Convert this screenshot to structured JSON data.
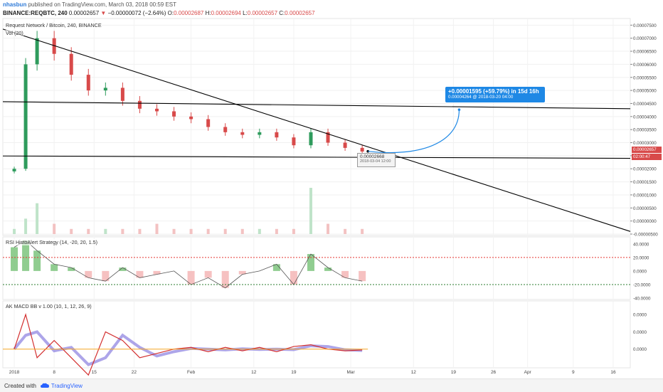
{
  "header": {
    "username": "nhasbun",
    "published_text": "published on TradingView.com, March 03, 2018 00:59 EST",
    "symbol_line": "BINANCE:REQBTC, 240",
    "price": "0.00002657",
    "change_arrow": "▼",
    "change": "−0.00000072 (−2.64%)",
    "ohlc": {
      "o_label": "O:",
      "o": "0.00002687",
      "h_label": "H:",
      "h": "0.00002694",
      "l_label": "L:",
      "l": "0.00002657",
      "c_label": "C:",
      "c": "0.00002657"
    }
  },
  "main_panel": {
    "title": "Request Network / Bitcoin, 240, BINANCE",
    "volume_label": "Vol (20)",
    "current_price_tag": "0.00002657",
    "countdown_tag": "02:00:47",
    "yticks": [
      "0.00007500",
      "0.00007000",
      "0.00006500",
      "0.00006000",
      "0.00005500",
      "0.00005000",
      "0.00004500",
      "0.00004000",
      "0.00003500",
      "0.00003000",
      "0.00002500",
      "0.00002000",
      "0.00001500",
      "0.00001000",
      "0.00000500",
      "0.00000000",
      "-0.00000500"
    ]
  },
  "projection": {
    "line1": "+0.00001595 (+59.79%) in 15d 16h",
    "line2": "0.00004264 @ 2018-03-20 04:00"
  },
  "tooltip": {
    "value": "0.00002668",
    "date": "2018-03-04 12:00"
  },
  "rsi_panel": {
    "title": "RSI HistoAlert Strategy (14, -20, 20, 1.5)",
    "yticks": [
      "40.0000",
      "20.0000",
      "0.0000",
      "-20.0000",
      "-40.0000"
    ]
  },
  "macd_panel": {
    "title": "AK MACD BB v 1.00 (10, 1, 12, 26, 9)",
    "yticks": [
      "0.0000",
      "0.0000",
      "0.0000"
    ]
  },
  "xaxis": {
    "ticks": [
      "2018",
      "8",
      "15",
      "22",
      "Feb",
      "12",
      "19",
      "Mar",
      "12",
      "19",
      "26",
      "Apr",
      "9",
      "16"
    ]
  },
  "footer": {
    "created_with": "Created with",
    "brand": "TradingView"
  },
  "colors": {
    "accent": "#1e88e5",
    "down": "#d84a4a",
    "up": "#2e9b5c",
    "rsi_green": "#7cc47c",
    "rsi_red": "#f4b6b6",
    "macd_band": "#8a7fe0",
    "trendline": "#000000"
  },
  "chart_data": [
    {
      "type": "candlestick",
      "title": "Request Network / Bitcoin, 240, BINANCE",
      "x": [
        "2018-01-01",
        "2018-01-03",
        "2018-01-05",
        "2018-01-08",
        "2018-01-11",
        "2018-01-14",
        "2018-01-17",
        "2018-01-20",
        "2018-01-23",
        "2018-01-26",
        "2018-01-29",
        "2018-02-01",
        "2018-02-04",
        "2018-02-07",
        "2018-02-10",
        "2018-02-13",
        "2018-02-16",
        "2018-02-19",
        "2018-02-22",
        "2018-02-25",
        "2018-02-28",
        "2018-03-03"
      ],
      "series": [
        {
          "values": [
            2e-05,
            6e-05,
            7e-05,
            6.4e-05,
            5.6e-05,
            5e-05,
            5.1e-05,
            4.6e-05,
            4.3e-05,
            4.2e-05,
            4e-05,
            3.9e-05,
            3.6e-05,
            3.4e-05,
            3.3e-05,
            3.4e-05,
            3.2e-05,
            2.9e-05,
            3.4e-05,
            3e-05,
            2.8e-05,
            2.66e-05
          ]
        }
      ],
      "ylim": [
        -5e-06,
        7.7e-05
      ],
      "trendlines": [
        {
          "from": [
            "2017-12-30",
            7.35e-05
          ],
          "to": [
            "2018-04-19",
            -4e-06
          ]
        },
        {
          "from": [
            "2017-12-30",
            4.57e-05
          ],
          "to": [
            "2018-04-19",
            4.3e-05
          ]
        },
        {
          "from": [
            "2017-12-30",
            2.49e-05
          ],
          "to": [
            "2018-04-19",
            2.4e-05
          ]
        }
      ],
      "volume": {
        "label": "Vol (20)",
        "values": [
          1e-06,
          3e-06,
          6e-06,
          2e-06,
          1e-06,
          1e-06,
          1e-06,
          1e-06,
          1e-06,
          2e-06,
          1e-06,
          1e-06,
          1e-06,
          1e-06,
          1e-06,
          1e-06,
          1e-06,
          1e-06,
          9e-06,
          2e-06,
          1e-06,
          1e-06
        ]
      }
    },
    {
      "type": "area",
      "title": "RSI HistoAlert Strategy (14, -20, 20, 1.5)",
      "x": [
        "2018-01-01",
        "2018-01-03",
        "2018-01-05",
        "2018-01-08",
        "2018-01-11",
        "2018-01-14",
        "2018-01-17",
        "2018-01-20",
        "2018-01-23",
        "2018-01-26",
        "2018-01-29",
        "2018-02-01",
        "2018-02-04",
        "2018-02-07",
        "2018-02-10",
        "2018-02-13",
        "2018-02-16",
        "2018-02-19",
        "2018-02-22",
        "2018-02-25",
        "2018-02-28",
        "2018-03-03"
      ],
      "series": [
        {
          "values": [
            35,
            45,
            30,
            10,
            5,
            -10,
            -15,
            5,
            -10,
            -5,
            0,
            -20,
            -10,
            -25,
            -5,
            0,
            10,
            -20,
            25,
            5,
            -10,
            -15
          ]
        }
      ],
      "thresholds": [
        20,
        -20
      ],
      "ylim": [
        -40,
        45
      ]
    },
    {
      "type": "line",
      "title": "AK MACD BB v 1.00 (10, 1, 12, 26, 9)",
      "x": [
        "2018-01-01",
        "2018-01-03",
        "2018-01-05",
        "2018-01-08",
        "2018-01-11",
        "2018-01-14",
        "2018-01-17",
        "2018-01-20",
        "2018-01-23",
        "2018-01-26",
        "2018-01-29",
        "2018-02-01",
        "2018-02-04",
        "2018-02-07",
        "2018-02-10",
        "2018-02-13",
        "2018-02-16",
        "2018-02-19",
        "2018-02-22",
        "2018-02-25",
        "2018-02-28",
        "2018-03-03"
      ],
      "series": [
        {
          "values": [
            0,
            4e-06,
            -1e-06,
            1e-06,
            -1e-06,
            -3e-06,
            2e-06,
            1e-06,
            -1e-06,
            -5e-07,
            0,
            2e-07,
            -3e-07,
            2e-07,
            -2e-07,
            2e-07,
            -3e-07,
            3e-07,
            5e-07,
            0,
            -2e-07,
            -1e-07
          ]
        }
      ],
      "ylim": [
        -2e-06,
        5e-06
      ]
    }
  ]
}
